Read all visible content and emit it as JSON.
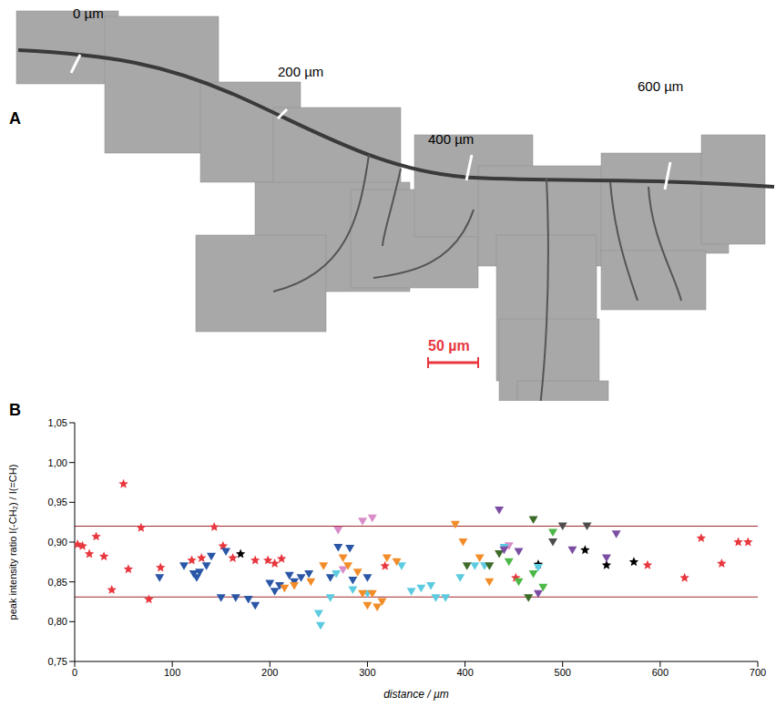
{
  "panel_a": {
    "letter": "A",
    "marks": [
      "0 µm",
      "200 µm",
      "400 µm",
      "600 µm"
    ],
    "scale_bar": "50 µm"
  },
  "panel_b": {
    "letter": "B"
  },
  "chart_data": {
    "type": "scatter",
    "x_label": "distance / µm",
    "y_label": "peak intensity ratio I(-CH₂) / I(=CH)",
    "xlim": [
      0,
      700
    ],
    "xticks": [
      0,
      100,
      200,
      300,
      400,
      500,
      600,
      700
    ],
    "ylim": [
      0.75,
      1.05
    ],
    "yticks": [
      {
        "value": 0.75,
        "label": "0,75"
      },
      {
        "value": 0.8,
        "label": "0,80"
      },
      {
        "value": 0.85,
        "label": "0,85"
      },
      {
        "value": 0.9,
        "label": "0,90"
      },
      {
        "value": 0.95,
        "label": "0,95"
      },
      {
        "value": 1.0,
        "label": "1,00"
      },
      {
        "value": 1.05,
        "label": "1,05"
      }
    ],
    "grid": false,
    "reference_lines": [
      0.92,
      0.831
    ],
    "reference_color": "#a0282d",
    "series": [
      {
        "color": "#e8373e",
        "marker": "star",
        "x": [
          3,
          8,
          15,
          22,
          30,
          38,
          50,
          55,
          68,
          76,
          88,
          120,
          130,
          143,
          152,
          162,
          185,
          198,
          205,
          212,
          318,
          452,
          587,
          625,
          642,
          663,
          680,
          690
        ],
        "values": [
          0.897,
          0.895,
          0.885,
          0.907,
          0.882,
          0.84,
          0.973,
          0.866,
          0.918,
          0.828,
          0.868,
          0.877,
          0.88,
          0.919,
          0.895,
          0.88,
          0.877,
          0.877,
          0.873,
          0.879,
          0.87,
          0.855,
          0.871,
          0.855,
          0.905,
          0.873,
          0.9,
          0.9
        ]
      },
      {
        "color": "#000000",
        "marker": "star",
        "x": [
          170,
          475,
          523,
          545,
          573
        ],
        "values": [
          0.885,
          0.872,
          0.89,
          0.871,
          0.875
        ]
      },
      {
        "color": "#2a56a6",
        "marker": "triangle_down",
        "x": [
          87,
          112,
          122,
          125,
          128,
          135,
          140,
          150,
          155,
          165,
          178,
          185,
          200,
          205,
          210,
          220,
          225,
          232,
          240,
          262,
          270,
          282,
          285,
          300
        ],
        "values": [
          0.855,
          0.87,
          0.86,
          0.855,
          0.862,
          0.87,
          0.882,
          0.83,
          0.888,
          0.83,
          0.828,
          0.82,
          0.848,
          0.838,
          0.845,
          0.858,
          0.85,
          0.855,
          0.86,
          0.855,
          0.893,
          0.892,
          0.852,
          0.855
        ]
      },
      {
        "color": "#d98cc8",
        "marker": "triangle_down",
        "x": [
          270,
          275,
          295,
          305,
          445
        ],
        "values": [
          0.915,
          0.865,
          0.926,
          0.93,
          0.895
        ]
      },
      {
        "color": "#5ccbe0",
        "marker": "triangle_down",
        "x": [
          250,
          252,
          262,
          268,
          285,
          300,
          335,
          345,
          355,
          365,
          370,
          380,
          395,
          410,
          420,
          440,
          475
        ],
        "values": [
          0.81,
          0.795,
          0.83,
          0.86,
          0.84,
          0.835,
          0.87,
          0.838,
          0.842,
          0.845,
          0.83,
          0.83,
          0.855,
          0.87,
          0.87,
          0.893,
          0.868
        ]
      },
      {
        "color": "#f28c28",
        "marker": "triangle_down",
        "x": [
          215,
          225,
          242,
          255,
          275,
          280,
          290,
          295,
          300,
          305,
          310,
          315,
          320,
          330,
          390,
          398,
          415,
          425
        ],
        "values": [
          0.842,
          0.845,
          0.85,
          0.87,
          0.88,
          0.87,
          0.862,
          0.835,
          0.82,
          0.835,
          0.818,
          0.825,
          0.88,
          0.875,
          0.922,
          0.9,
          0.88,
          0.85
        ]
      },
      {
        "color": "#3d6b2a",
        "marker": "triangle_down",
        "x": [
          402,
          425,
          435,
          465,
          470
        ],
        "values": [
          0.87,
          0.87,
          0.885,
          0.83,
          0.928
        ]
      },
      {
        "color": "#4cb848",
        "marker": "triangle_down",
        "x": [
          445,
          455,
          470,
          480,
          490
        ],
        "values": [
          0.875,
          0.85,
          0.86,
          0.843,
          0.912
        ]
      },
      {
        "color": "#4d4d4d",
        "marker": "triangle_down",
        "x": [
          490,
          500,
          525
        ],
        "values": [
          0.9,
          0.92,
          0.92
        ]
      },
      {
        "color": "#7b4ea3",
        "marker": "triangle_down",
        "x": [
          435,
          440,
          455,
          475,
          510,
          545,
          555
        ],
        "values": [
          0.94,
          0.89,
          0.888,
          0.835,
          0.89,
          0.88,
          0.91
        ]
      }
    ]
  }
}
